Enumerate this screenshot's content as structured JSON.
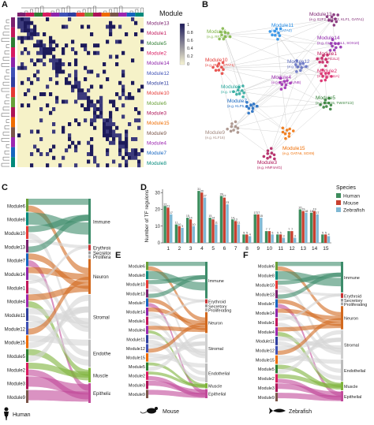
{
  "panels": {
    "a": "A",
    "b": "B",
    "c": "C",
    "d": "D",
    "e": "E",
    "f": "F"
  },
  "heatmap": {
    "legend_title": "Module",
    "colorbar_ticks": [
      "1",
      "0.8",
      "0.6",
      "0.4",
      "0.2",
      "0"
    ],
    "modules": [
      {
        "label": "Module13",
        "color": "#7a1f6e"
      },
      {
        "label": "Module1",
        "color": "#c2185b"
      },
      {
        "label": "Module5",
        "color": "#2e7d32"
      },
      {
        "label": "Module2",
        "color": "#d81b60"
      },
      {
        "label": "Module14",
        "color": "#8e24aa"
      },
      {
        "label": "Module12",
        "color": "#3f51b5"
      },
      {
        "label": "Module11",
        "color": "#303f9f"
      },
      {
        "label": "Module10",
        "color": "#e53935"
      },
      {
        "label": "Module6",
        "color": "#689f38"
      },
      {
        "label": "Module3",
        "color": "#ad1457"
      },
      {
        "label": "Module15",
        "color": "#ef6c00"
      },
      {
        "label": "Module9",
        "color": "#795548"
      },
      {
        "label": "Module4",
        "color": "#9c27b0"
      },
      {
        "label": "Module7",
        "color": "#1565c0"
      },
      {
        "label": "Module8",
        "color": "#00897b"
      }
    ]
  },
  "network": {
    "nodes": [
      {
        "label": "Module13",
        "sub": "(e.g. E2F2, TFDP2, KLF1, GATA1)",
        "color": "#7a1f6e"
      },
      {
        "label": "Module6",
        "sub": "(e.g. RFX3/4/7)",
        "color": "#7cb342"
      },
      {
        "label": "Module11",
        "sub": "(e.g. GATA2)",
        "color": "#1e88e5"
      },
      {
        "label": "Module14",
        "sub": "(e.g. GLIS2, ISL1, SOX10)",
        "color": "#8e24aa"
      },
      {
        "label": "Module1",
        "sub": "(e.g. NFE2L2)",
        "color": "#c2185b"
      },
      {
        "label": "Module2",
        "sub": "(e.g. BCL11A)",
        "color": "#d81b60"
      },
      {
        "label": "Module10",
        "sub": "(e.g. IRF1, STAT1)",
        "color": "#e53935"
      },
      {
        "label": "Module12",
        "sub": "(e.g. MEF2D)",
        "color": "#5c6bc0"
      },
      {
        "label": "Module8",
        "sub": "(e.g. STAT3)",
        "color": "#26a69a"
      },
      {
        "label": "Module4",
        "sub": "(e.g. ZEB1, JUNB)",
        "color": "#9c27b0"
      },
      {
        "label": "Module5",
        "sub": "(e.g. TBX15, TWIST1/2)",
        "color": "#2e7d32"
      },
      {
        "label": "Module7",
        "sub": "(e.g. KLF5, JUND)",
        "color": "#1565c0"
      },
      {
        "label": "Module9",
        "sub": "(e.g. KLF16)",
        "color": "#a1887f"
      },
      {
        "label": "Module15",
        "sub": "(e.g. GATA6, SOX9)",
        "color": "#ef6c00"
      },
      {
        "label": "Module3",
        "sub": "(e.g. HNF4A/G)",
        "color": "#ad1457"
      }
    ]
  },
  "sankey_common": {
    "left_modules": [
      "Module6",
      "Module8",
      "Module10",
      "Module13",
      "Module7",
      "Module14",
      "Module1",
      "Module4",
      "Module11",
      "Module12",
      "Module15",
      "Module5",
      "Module2",
      "Module3",
      "Module9"
    ],
    "right_tissues": [
      "Immune",
      "Erythroid",
      "Secretory",
      "Proliferating",
      "Neuron",
      "Stromal",
      "Endothelial",
      "Muscle",
      "Epithelial"
    ],
    "tissue_colors": {
      "Immune": "#3d8c6a",
      "Erythroid": "#c83232",
      "Secretory": "#999999",
      "Proliferating": "#aaaaaa",
      "Neuron": "#d2691e",
      "Stromal": "#cfcfcf",
      "Endothelial": "#bbbbbb",
      "Muscle": "#7db33a",
      "Epithelial": "#c14a9a"
    }
  },
  "species_labels": {
    "human": "Human",
    "mouse": "Mouse",
    "zebrafish": "Zebrafish"
  },
  "chart_data": {
    "type": "bar",
    "categories": [
      "1",
      "2",
      "3",
      "4",
      "5",
      "6",
      "7",
      "8",
      "9",
      "10",
      "11",
      "12",
      "13",
      "14",
      "15"
    ],
    "ylabel": "Number of TF regulons",
    "ylim": [
      0,
      32
    ],
    "yticks": [
      0,
      10,
      20,
      30
    ],
    "legend_title": "Species",
    "legend_position": "top-right",
    "series": [
      {
        "name": "Human",
        "color": "#3d8c5c",
        "values": [
          22,
          11,
          15,
          31,
          15,
          28,
          14,
          5,
          17,
          7,
          5,
          7,
          20,
          18,
          5
        ]
      },
      {
        "name": "Mouse",
        "color": "#c8402f",
        "values": [
          21,
          10,
          14,
          30,
          14,
          27,
          13,
          5,
          17,
          7,
          5,
          7,
          19,
          19,
          5
        ]
      },
      {
        "name": "Zebrafish",
        "color": "#7fb8d4",
        "values": [
          17,
          9,
          10,
          27,
          11,
          23,
          11,
          4,
          15,
          5,
          3,
          3,
          18,
          17,
          4
        ]
      }
    ]
  }
}
